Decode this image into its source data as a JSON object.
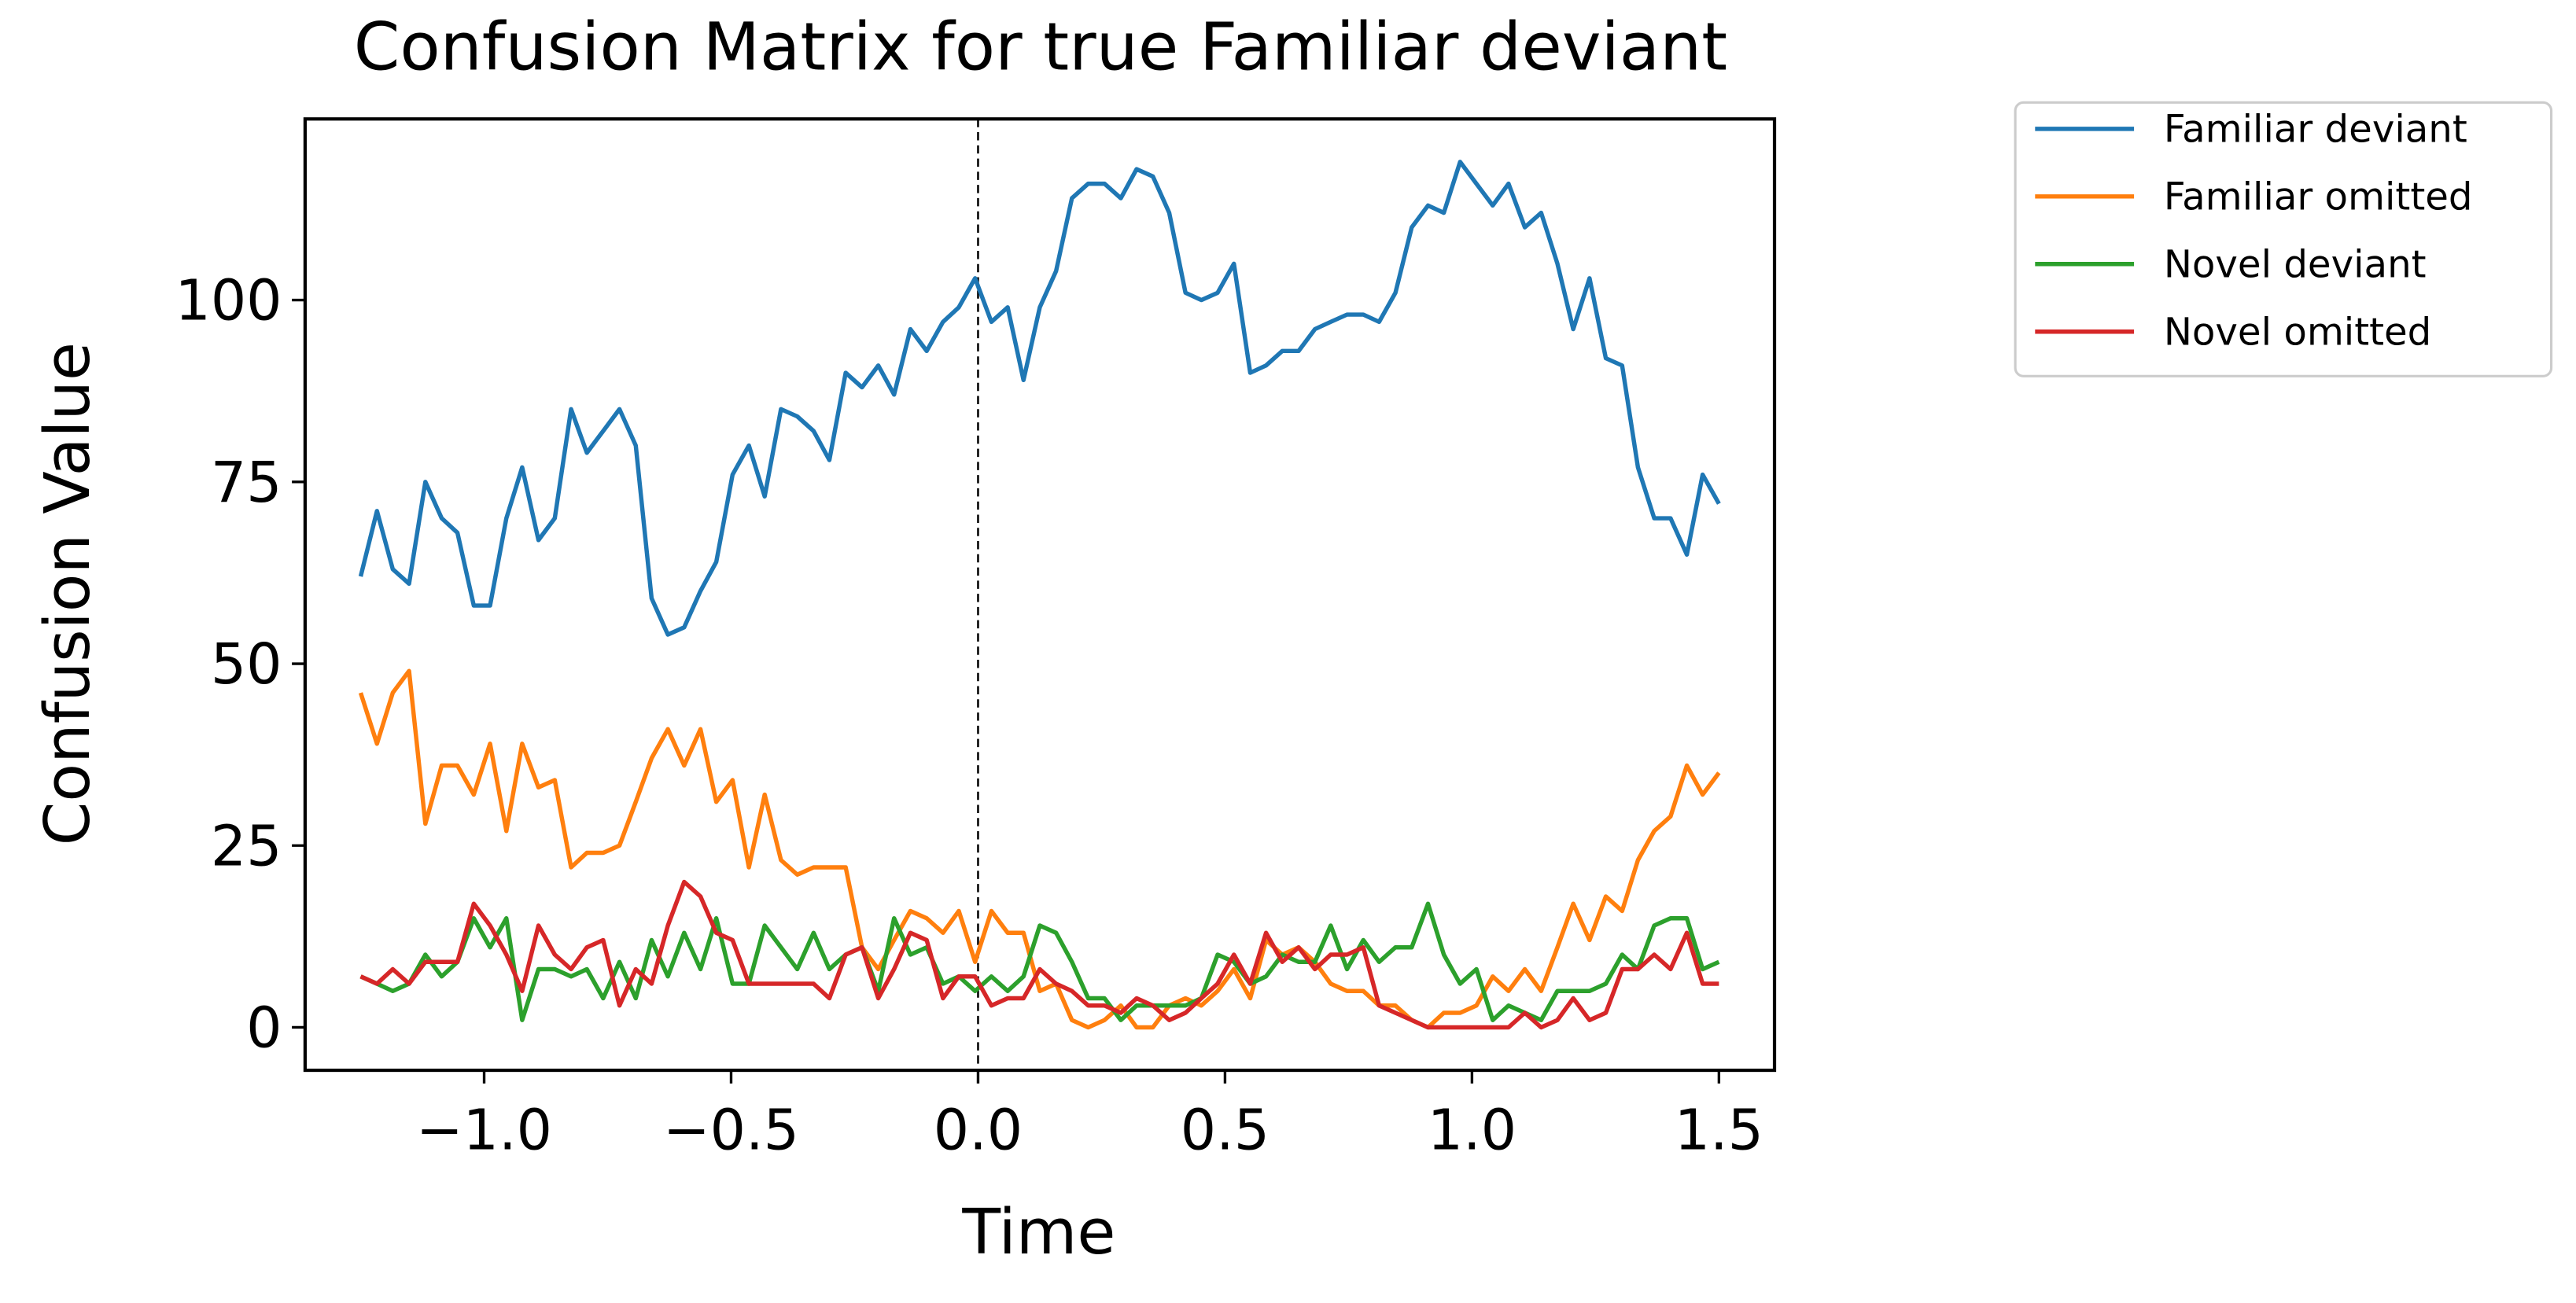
{
  "chart_data": {
    "type": "line",
    "title": "Confusion Matrix for true Familiar deviant",
    "xlabel": "Time",
    "ylabel": "Confusion Value",
    "x": [
      -1.25,
      -1.217,
      -1.185,
      -1.152,
      -1.119,
      -1.086,
      -1.054,
      -1.021,
      -0.988,
      -0.955,
      -0.923,
      -0.89,
      -0.857,
      -0.824,
      -0.792,
      -0.759,
      -0.726,
      -0.693,
      -0.661,
      -0.628,
      -0.595,
      -0.562,
      -0.53,
      -0.497,
      -0.464,
      -0.432,
      -0.399,
      -0.366,
      -0.333,
      -0.301,
      -0.268,
      -0.235,
      -0.202,
      -0.17,
      -0.137,
      -0.104,
      -0.071,
      -0.039,
      -0.006,
      0.027,
      0.06,
      0.092,
      0.125,
      0.158,
      0.19,
      0.223,
      0.256,
      0.289,
      0.321,
      0.354,
      0.387,
      0.42,
      0.452,
      0.485,
      0.518,
      0.551,
      0.583,
      0.616,
      0.649,
      0.682,
      0.714,
      0.747,
      0.78,
      0.812,
      0.845,
      0.878,
      0.911,
      0.943,
      0.976,
      1.009,
      1.042,
      1.074,
      1.107,
      1.14,
      1.173,
      1.205,
      1.238,
      1.271,
      1.304,
      1.336,
      1.369,
      1.402,
      1.435,
      1.467,
      1.5
    ],
    "series": [
      {
        "name": "Familiar deviant",
        "color": "#1f77b4",
        "values": [
          62,
          71,
          63,
          61,
          75,
          70,
          68,
          58,
          58,
          70,
          77,
          67,
          70,
          85,
          79,
          82,
          85,
          80,
          59,
          54,
          55,
          60,
          64,
          76,
          80,
          73,
          85,
          84,
          82,
          78,
          90,
          88,
          91,
          87,
          96,
          93,
          97,
          99,
          103,
          97,
          99,
          89,
          99,
          104,
          114,
          116,
          116,
          114,
          118,
          117,
          112,
          101,
          100,
          101,
          105,
          90,
          91,
          93,
          93,
          96,
          97,
          98,
          98,
          97,
          101,
          110,
          113,
          112,
          119,
          116,
          113,
          116,
          110,
          112,
          105,
          96,
          103,
          92,
          91,
          77,
          70,
          70,
          65,
          76,
          72
        ]
      },
      {
        "name": "Familiar omitted",
        "color": "#ff7f0e",
        "values": [
          46,
          39,
          46,
          49,
          28,
          36,
          36,
          32,
          39,
          27,
          39,
          33,
          34,
          22,
          24,
          24,
          25,
          31,
          37,
          41,
          36,
          41,
          31,
          34,
          22,
          32,
          23,
          21,
          22,
          22,
          22,
          11,
          8,
          12,
          16,
          15,
          13,
          16,
          9,
          16,
          13,
          13,
          5,
          6,
          1,
          0,
          1,
          3,
          0,
          0,
          3,
          4,
          3,
          5,
          8,
          4,
          12,
          10,
          11,
          9,
          6,
          5,
          5,
          3,
          3,
          1,
          0,
          2,
          2,
          3,
          7,
          5,
          8,
          5,
          11,
          17,
          12,
          18,
          16,
          23,
          27,
          29,
          36,
          32,
          35
        ]
      },
      {
        "name": "Novel deviant",
        "color": "#2ca02c",
        "values": [
          7,
          6,
          5,
          6,
          10,
          7,
          9,
          15,
          11,
          15,
          1,
          8,
          8,
          7,
          8,
          4,
          9,
          4,
          12,
          7,
          13,
          8,
          15,
          6,
          6,
          14,
          11,
          8,
          13,
          8,
          10,
          11,
          5,
          15,
          10,
          11,
          6,
          7,
          5,
          7,
          5,
          7,
          14,
          13,
          9,
          4,
          4,
          1,
          3,
          3,
          3,
          3,
          4,
          10,
          9,
          6,
          7,
          10,
          9,
          9,
          14,
          8,
          12,
          9,
          11,
          11,
          17,
          10,
          6,
          8,
          1,
          3,
          2,
          1,
          5,
          5,
          5,
          6,
          10,
          8,
          14,
          15,
          15,
          8,
          9
        ]
      },
      {
        "name": "Novel omitted",
        "color": "#d62728",
        "values": [
          7,
          6,
          8,
          6,
          9,
          9,
          9,
          17,
          14,
          10,
          5,
          14,
          10,
          8,
          11,
          12,
          3,
          8,
          6,
          14,
          20,
          18,
          13,
          12,
          6,
          6,
          6,
          6,
          6,
          4,
          10,
          11,
          4,
          8,
          13,
          12,
          4,
          7,
          7,
          3,
          4,
          4,
          8,
          6,
          5,
          3,
          3,
          2,
          4,
          3,
          1,
          2,
          4,
          6,
          10,
          6,
          13,
          9,
          11,
          8,
          10,
          10,
          11,
          3,
          2,
          1,
          0,
          0,
          0,
          0,
          0,
          0,
          2,
          0,
          1,
          4,
          1,
          2,
          8,
          8,
          10,
          8,
          13,
          6,
          6
        ]
      }
    ],
    "xlim": [
      -1.3625,
      1.6125
    ],
    "xticks": [
      {
        "value": -1,
        "label": "−1.0"
      },
      {
        "value": -0.5,
        "label": "−0.5"
      },
      {
        "value": 0,
        "label": "0.0"
      },
      0.5,
      {
        "value": 1,
        "label": "1.0"
      },
      1.5
    ],
    "ylim": [
      -5.9,
      124.9
    ],
    "yticks": [
      0,
      25,
      50,
      75,
      100
    ],
    "vline": 0,
    "grid": false,
    "legend": "outside right"
  }
}
